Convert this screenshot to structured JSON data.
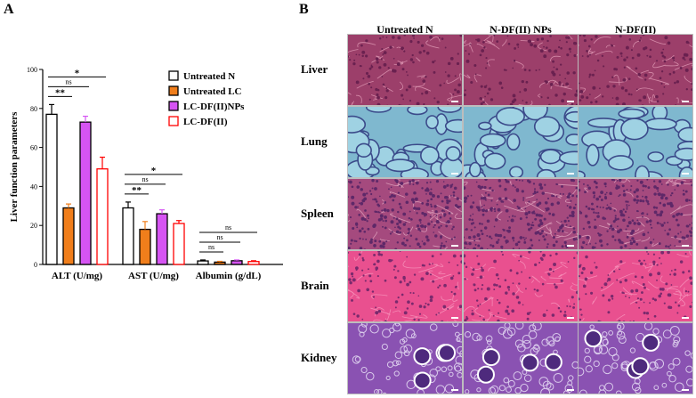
{
  "panel_a": {
    "letter": "A"
  },
  "panel_b": {
    "letter": "B"
  },
  "chart_data": {
    "type": "bar",
    "ylabel": "Liver function parameters",
    "ylim": [
      0,
      100
    ],
    "yticks": [
      0,
      20,
      40,
      60,
      80,
      100
    ],
    "categories": [
      "ALT (U/mg)",
      "AST (U/mg)",
      "Albumin (g/dL)"
    ],
    "series": [
      {
        "name": "Untreated N",
        "values": [
          77,
          29,
          1.8
        ],
        "errors": [
          5,
          3,
          0.5
        ],
        "style": "outline",
        "color": "#000000"
      },
      {
        "name": "Untreated LC",
        "values": [
          29,
          18,
          1.2
        ],
        "errors": [
          2,
          4,
          0.4
        ],
        "style": "filled",
        "color": "#f07e1b"
      },
      {
        "name": "LC-DF(II)NPs",
        "values": [
          73,
          26,
          1.9
        ],
        "errors": [
          3,
          2,
          0.4
        ],
        "style": "filled",
        "color": "#d654f3"
      },
      {
        "name": "LC-DF(II)",
        "values": [
          49,
          21,
          1.5
        ],
        "errors": [
          6,
          1.5,
          0.4
        ],
        "style": "outline",
        "color": "#ff0000"
      }
    ],
    "significance": [
      {
        "category": 0,
        "compare": 1,
        "label": "**"
      },
      {
        "category": 0,
        "compare": 2,
        "label": "ns"
      },
      {
        "category": 0,
        "compare": 3,
        "label": "*"
      },
      {
        "category": 1,
        "compare": 1,
        "label": "**"
      },
      {
        "category": 1,
        "compare": 2,
        "label": "ns"
      },
      {
        "category": 1,
        "compare": 3,
        "label": "*"
      },
      {
        "category": 2,
        "compare": 1,
        "label": "ns"
      },
      {
        "category": 2,
        "compare": 2,
        "label": "ns"
      },
      {
        "category": 2,
        "compare": 3,
        "label": "ns"
      }
    ]
  },
  "histology": {
    "columns": [
      "Untreated N",
      "N-DF(II) NPs",
      "N-DF(II)"
    ],
    "rows": [
      {
        "label": "Liver",
        "stain": "liver"
      },
      {
        "label": "Lung",
        "stain": "lung"
      },
      {
        "label": "Spleen",
        "stain": "spleen"
      },
      {
        "label": "Brain",
        "stain": "brain"
      },
      {
        "label": "Kidney",
        "stain": "kidney"
      }
    ],
    "stain_colors": {
      "liver": {
        "bg": "#9c3f6a",
        "spot": "#6a2150",
        "light": "#d48aa8"
      },
      "lung": {
        "bg": "#7fb8cf",
        "spot": "#3b4a8a",
        "light": "#9fd2e3"
      },
      "spleen": {
        "bg": "#a54a7e",
        "spot": "#5e2868",
        "light": "#d797b5"
      },
      "brain": {
        "bg": "#e9508f",
        "spot": "#7a2a6d",
        "light": "#f58ab5"
      },
      "kidney": {
        "bg": "#8a52b2",
        "spot": "#4e2a7d",
        "light": "#d8c8ea"
      }
    }
  }
}
